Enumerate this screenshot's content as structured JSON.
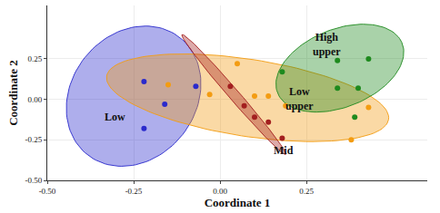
{
  "chart_data": {
    "type": "scatter",
    "xlabel": "Coordinate 1",
    "ylabel": "Coordinate 2",
    "xlim": [
      -0.5,
      0.6
    ],
    "ylim": [
      -0.5,
      0.58
    ],
    "xticks": [
      {
        "value": -0.5,
        "label": "-0.50"
      },
      {
        "value": -0.25,
        "label": "-0.25"
      },
      {
        "value": 0,
        "label": "0.00"
      },
      {
        "value": 0.25,
        "label": "0.25"
      }
    ],
    "yticks": [
      {
        "value": -0.5,
        "label": "-0.50"
      },
      {
        "value": -0.25,
        "label": "-0.25"
      },
      {
        "value": 0,
        "label": "0.00"
      },
      {
        "value": 0.25,
        "label": "0.25"
      }
    ],
    "grid": true,
    "series": [
      {
        "name": "Low",
        "color": "#2a2acc",
        "x": [
          -0.22,
          -0.07,
          -0.16,
          -0.22
        ],
        "values": [
          0.11,
          0.08,
          -0.03,
          -0.18
        ],
        "ellipse": {
          "center": [
            -0.25,
            0.02
          ],
          "axis1": [
            0.118,
            0.385
          ],
          "axis2": [
            0.155,
            -0.198
          ]
        },
        "label_at": [
          -0.305,
          -0.107
        ]
      },
      {
        "name": "Low upper",
        "color": "#f39c12",
        "x": [
          -0.15,
          -0.03,
          0.05,
          0.1,
          0.14,
          0.19,
          0.43,
          0.38
        ],
        "values": [
          0.09,
          0.03,
          0.22,
          0.02,
          0.02,
          -0.04,
          -0.05,
          -0.25
        ],
        "ellipse": {
          "center": [
            0.08,
            0.01
          ],
          "axis1": [
            0.408,
            -0.134
          ],
          "axis2": [
            -0.018,
            -0.235
          ]
        },
        "label_at": [
          0.23,
          0.005
        ]
      },
      {
        "name": "Mid",
        "color": "#a31f1f",
        "x": [
          0.03,
          0.07,
          0.1,
          0.14,
          0.18
        ],
        "values": [
          0.08,
          -0.04,
          -0.11,
          -0.14,
          -0.24
        ],
        "ellipse": {
          "center": [
            0.04,
            0.03
          ],
          "axis1": [
            0.15,
            -0.37
          ],
          "axis2": [
            0.012,
            0.02
          ]
        },
        "label_at": [
          0.184,
          -0.316
        ]
      },
      {
        "name": "High upper",
        "color": "#1e8a1e",
        "x": [
          0.18,
          0.34,
          0.43,
          0.34,
          0.4,
          0.39
        ],
        "values": [
          0.17,
          0.24,
          0.25,
          0.07,
          0.07,
          -0.11
        ],
        "ellipse": {
          "center": [
            0.347,
            0.193
          ],
          "axis1": [
            0.179,
            0.16
          ],
          "axis2": [
            0.047,
            -0.219
          ]
        },
        "label_at": [
          0.308,
          0.337
        ]
      }
    ]
  }
}
